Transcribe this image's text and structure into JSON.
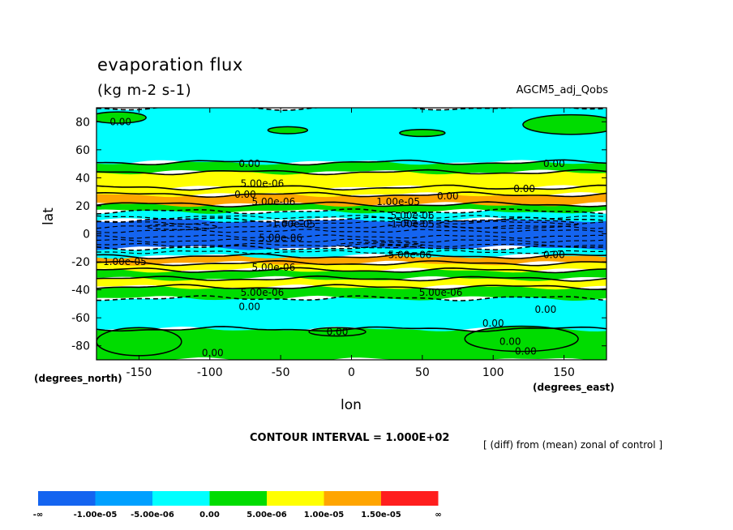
{
  "chart_data": {
    "type": "heatmap",
    "title": "evaporation flux",
    "units": "(kg m-2 s-1)",
    "run_label": "AGCM5_adj_Qobs",
    "xlabel": "lon",
    "ylabel": "lat",
    "x_unit_label": "(degrees_east)",
    "y_unit_label": "(degrees_north)",
    "xlim": [
      -180,
      180
    ],
    "ylim": [
      -90,
      90
    ],
    "x_ticks": [
      -150,
      -100,
      -50,
      0,
      50,
      100,
      150
    ],
    "y_ticks": [
      80,
      60,
      40,
      20,
      0,
      -20,
      -40,
      -60,
      -80
    ],
    "contour_interval": "CONTOUR INTERVAL = 1.000E+02",
    "diff_note": "[ (diff) from (mean) zonal of control ]",
    "colorbar": {
      "labels": [
        "-∞",
        "-1.00e-05",
        "-5.00e-06",
        "0.00",
        "5.00e-06",
        "1.00e-05",
        "1.50e-05",
        "∞"
      ],
      "colors": [
        "#1464f0",
        "#00a0ff",
        "#00ffff",
        "#00dc00",
        "#ffff00",
        "#ffa500",
        "#ff1e1e"
      ]
    },
    "zonal_bands": [
      {
        "lat": [
          -90,
          -68
        ],
        "level": "0 to 5e-06"
      },
      {
        "lat": [
          -68,
          -46
        ],
        "level": "-5e-06 to 0"
      },
      {
        "lat": [
          -46,
          -38
        ],
        "level": "0 to 5e-06"
      },
      {
        "lat": [
          -38,
          -32
        ],
        "level": "5e-06 to 1e-05"
      },
      {
        "lat": [
          -32,
          -26
        ],
        "level": "0 to 5e-06"
      },
      {
        "lat": [
          -26,
          -21
        ],
        "level": "5e-06 to 1e-05"
      },
      {
        "lat": [
          -21,
          -16
        ],
        "level": "1e-05 to 1.5e-05"
      },
      {
        "lat": [
          -16,
          -10
        ],
        "level": "-5e-06 to 0"
      },
      {
        "lat": [
          -10,
          10
        ],
        "level": "-1e-05 to -5e-06"
      },
      {
        "lat": [
          10,
          16
        ],
        "level": "-5e-06 to 0"
      },
      {
        "lat": [
          16,
          21
        ],
        "level": "0 to 5e-06"
      },
      {
        "lat": [
          21,
          28
        ],
        "level": "1e-05 to 1.5e-05"
      },
      {
        "lat": [
          28,
          33
        ],
        "level": "5e-06 to 1e-05"
      },
      {
        "lat": [
          33,
          44
        ],
        "level": "5e-06 to 1e-05"
      },
      {
        "lat": [
          44,
          51
        ],
        "level": "0 to 5e-06"
      },
      {
        "lat": [
          51,
          90
        ],
        "level": "-5e-06 to 0"
      }
    ],
    "contour_labels": [
      {
        "text": "0.00",
        "lon": -163,
        "lat": 80
      },
      {
        "text": "0.00",
        "lon": -72,
        "lat": 50
      },
      {
        "text": "0.00",
        "lon": 143,
        "lat": 50
      },
      {
        "text": "5.00e-06",
        "lon": -63,
        "lat": 36
      },
      {
        "text": "0.00",
        "lon": 122,
        "lat": 32
      },
      {
        "text": "0.00",
        "lon": 68,
        "lat": 27
      },
      {
        "text": "1.00e-05",
        "lon": 33,
        "lat": 23
      },
      {
        "text": "5.00e-06",
        "lon": -55,
        "lat": 23
      },
      {
        "text": "0.00",
        "lon": -75,
        "lat": 28
      },
      {
        "text": "5.00e-06",
        "lon": 43,
        "lat": 13
      },
      {
        "text": "-1.00e-05",
        "lon": -42,
        "lat": 7
      },
      {
        "text": "-1.00e-05",
        "lon": 42,
        "lat": 7
      },
      {
        "text": "5.00e-06",
        "lon": -50,
        "lat": -3
      },
      {
        "text": "-5.00e-06",
        "lon": 40,
        "lat": -15
      },
      {
        "text": "1.00e-05",
        "lon": -160,
        "lat": -20
      },
      {
        "text": "5.00e-06",
        "lon": -55,
        "lat": -24
      },
      {
        "text": "0.00",
        "lon": 143,
        "lat": -15
      },
      {
        "text": "5.00e-06",
        "lon": -63,
        "lat": -42
      },
      {
        "text": "5.00e-06",
        "lon": 63,
        "lat": -42
      },
      {
        "text": "0.00",
        "lon": -72,
        "lat": -52
      },
      {
        "text": "0.00",
        "lon": 137,
        "lat": -54
      },
      {
        "text": "0.00",
        "lon": 100,
        "lat": -64
      },
      {
        "text": "0.00",
        "lon": -10,
        "lat": -70
      },
      {
        "text": "0.00",
        "lon": 112,
        "lat": -77
      },
      {
        "text": "0.00",
        "lon": 123,
        "lat": -84
      },
      {
        "text": "0.00",
        "lon": -98,
        "lat": -85
      }
    ]
  }
}
